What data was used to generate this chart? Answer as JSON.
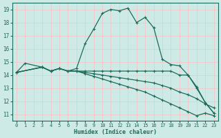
{
  "bg_color": "#ceeae6",
  "grid_color": "#f0c8c8",
  "line_color": "#1a6b5a",
  "xlabel": "Humidex (Indice chaleur)",
  "xlim": [
    -0.5,
    23.5
  ],
  "ylim": [
    10.5,
    19.5
  ],
  "yticks": [
    11,
    12,
    13,
    14,
    15,
    16,
    17,
    18,
    19
  ],
  "xticks": [
    0,
    1,
    2,
    3,
    4,
    5,
    6,
    7,
    8,
    9,
    10,
    11,
    12,
    13,
    14,
    15,
    16,
    17,
    18,
    19,
    20,
    21,
    22,
    23
  ],
  "curves": [
    {
      "x": [
        0,
        1,
        3,
        4,
        5,
        6,
        7,
        8,
        9,
        10,
        11,
        12,
        13,
        14,
        15,
        16,
        17,
        18,
        19,
        20,
        21,
        22,
        23
      ],
      "y": [
        14.2,
        14.9,
        14.6,
        14.3,
        14.5,
        14.3,
        14.5,
        16.4,
        17.5,
        18.7,
        19.0,
        18.9,
        19.1,
        18.0,
        18.4,
        17.6,
        15.2,
        14.8,
        14.7,
        14.0,
        13.0,
        11.9,
        11.1
      ]
    },
    {
      "x": [
        0,
        3,
        4,
        5,
        6,
        7,
        8,
        9,
        10,
        11,
        12,
        13,
        14,
        15,
        16,
        17,
        18,
        19,
        20,
        21,
        22,
        23
      ],
      "y": [
        14.2,
        14.6,
        14.3,
        14.5,
        14.3,
        14.3,
        14.3,
        14.3,
        14.3,
        14.3,
        14.3,
        14.3,
        14.3,
        14.3,
        14.3,
        14.3,
        14.3,
        14.0,
        14.0,
        13.1,
        11.9,
        11.1
      ]
    },
    {
      "x": [
        0,
        3,
        4,
        5,
        6,
        7,
        8,
        9,
        10,
        11,
        12,
        13,
        14,
        15,
        16,
        17,
        18,
        19,
        20,
        21,
        22,
        23
      ],
      "y": [
        14.2,
        14.6,
        14.3,
        14.5,
        14.3,
        14.3,
        14.2,
        14.1,
        14.0,
        13.9,
        13.8,
        13.7,
        13.6,
        13.5,
        13.4,
        13.2,
        13.0,
        12.7,
        12.5,
        12.2,
        11.8,
        11.5
      ]
    },
    {
      "x": [
        0,
        3,
        4,
        5,
        6,
        7,
        8,
        9,
        10,
        11,
        12,
        13,
        14,
        15,
        16,
        17,
        18,
        19,
        20,
        21,
        22,
        23
      ],
      "y": [
        14.2,
        14.6,
        14.3,
        14.5,
        14.3,
        14.3,
        14.1,
        13.9,
        13.7,
        13.5,
        13.3,
        13.1,
        12.9,
        12.7,
        12.4,
        12.1,
        11.8,
        11.5,
        11.2,
        10.9,
        11.1,
        10.9
      ]
    }
  ]
}
